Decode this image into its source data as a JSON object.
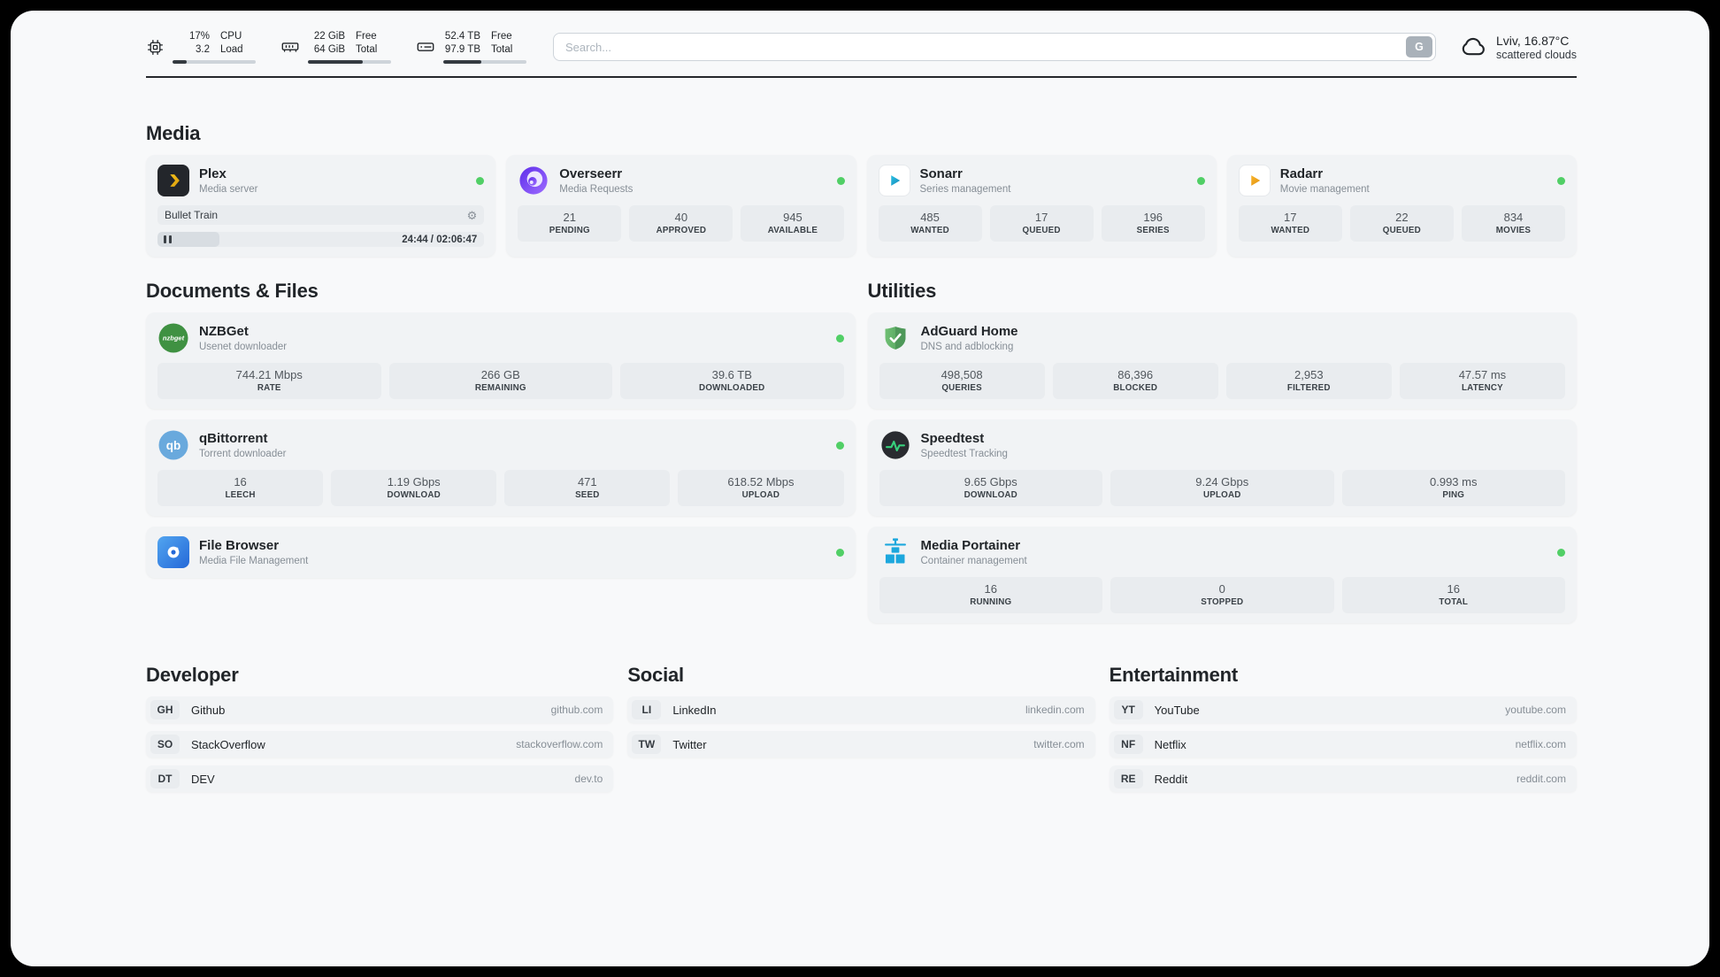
{
  "theme": {
    "status_online": "#51cf66",
    "page_bg": "#f8f9fa",
    "card_bg": "#f1f3f5",
    "stat_bg": "#e9ecef"
  },
  "icons": {
    "cpu": "chip",
    "ram": "memory-module",
    "disk": "hard-drive",
    "weather": "cloud",
    "search_engine": "G",
    "gear_glyph": "⚙",
    "nzbget_text": "nzbget",
    "qbittorrent_text": "qb",
    "status": "green-dot"
  },
  "header": {
    "cpu": {
      "usage": "17%",
      "load": "3.2",
      "label_top": "CPU",
      "label_bottom": "Load",
      "percent": 17
    },
    "ram": {
      "free": "22 GiB",
      "total": "64 GiB",
      "label_top": "Free",
      "label_bottom": "Total",
      "percent": 66
    },
    "disk": {
      "free": "52.4 TB",
      "total": "97.9 TB",
      "label_top": "Free",
      "label_bottom": "Total",
      "percent": 46
    },
    "search": {
      "placeholder": "Search...",
      "engine_label": "G"
    },
    "weather": {
      "location": "Lviv, 16.87°C",
      "condition": "scattered clouds"
    }
  },
  "sections": {
    "media": {
      "title": "Media",
      "apps": [
        {
          "name": "Plex",
          "subtitle": "Media server",
          "status": "online",
          "now_playing": {
            "title": "Bullet Train",
            "time": "24:44 / 02:06:47",
            "progress_percent": 19
          }
        },
        {
          "name": "Overseerr",
          "subtitle": "Media Requests",
          "status": "online",
          "stats": [
            {
              "value": "21",
              "label": "PENDING"
            },
            {
              "value": "40",
              "label": "APPROVED"
            },
            {
              "value": "945",
              "label": "AVAILABLE"
            }
          ]
        },
        {
          "name": "Sonarr",
          "subtitle": "Series management",
          "status": "online",
          "stats": [
            {
              "value": "485",
              "label": "WANTED"
            },
            {
              "value": "17",
              "label": "QUEUED"
            },
            {
              "value": "196",
              "label": "SERIES"
            }
          ]
        },
        {
          "name": "Radarr",
          "subtitle": "Movie management",
          "status": "online",
          "stats": [
            {
              "value": "17",
              "label": "WANTED"
            },
            {
              "value": "22",
              "label": "QUEUED"
            },
            {
              "value": "834",
              "label": "MOVIES"
            }
          ]
        }
      ]
    },
    "documents": {
      "title": "Documents & Files",
      "apps": [
        {
          "name": "NZBGet",
          "subtitle": "Usenet downloader",
          "status": "online",
          "stats": [
            {
              "value": "744.21 Mbps",
              "label": "RATE"
            },
            {
              "value": "266 GB",
              "label": "REMAINING"
            },
            {
              "value": "39.6 TB",
              "label": "DOWNLOADED"
            }
          ]
        },
        {
          "name": "qBittorrent",
          "subtitle": "Torrent downloader",
          "status": "online",
          "stats": [
            {
              "value": "16",
              "label": "LEECH"
            },
            {
              "value": "1.19 Gbps",
              "label": "DOWNLOAD"
            },
            {
              "value": "471",
              "label": "SEED"
            },
            {
              "value": "618.52 Mbps",
              "label": "UPLOAD"
            }
          ]
        },
        {
          "name": "File Browser",
          "subtitle": "Media File Management",
          "status": "online"
        }
      ]
    },
    "utilities": {
      "title": "Utilities",
      "apps": [
        {
          "name": "AdGuard Home",
          "subtitle": "DNS and adblocking",
          "stats": [
            {
              "value": "498,508",
              "label": "QUERIES"
            },
            {
              "value": "86,396",
              "label": "BLOCKED"
            },
            {
              "value": "2,953",
              "label": "FILTERED"
            },
            {
              "value": "47.57 ms",
              "label": "LATENCY"
            }
          ]
        },
        {
          "name": "Speedtest",
          "subtitle": "Speedtest Tracking",
          "stats": [
            {
              "value": "9.65 Gbps",
              "label": "DOWNLOAD"
            },
            {
              "value": "9.24 Gbps",
              "label": "UPLOAD"
            },
            {
              "value": "0.993 ms",
              "label": "PING"
            }
          ]
        },
        {
          "name": "Media Portainer",
          "subtitle": "Container management",
          "status": "online",
          "stats": [
            {
              "value": "16",
              "label": "RUNNING"
            },
            {
              "value": "0",
              "label": "STOPPED"
            },
            {
              "value": "16",
              "label": "TOTAL"
            }
          ]
        }
      ]
    }
  },
  "bookmarks": [
    {
      "title": "Developer",
      "items": [
        {
          "abbr": "GH",
          "name": "Github",
          "url": "github.com"
        },
        {
          "abbr": "SO",
          "name": "StackOverflow",
          "url": "stackoverflow.com"
        },
        {
          "abbr": "DT",
          "name": "DEV",
          "url": "dev.to"
        }
      ]
    },
    {
      "title": "Social",
      "items": [
        {
          "abbr": "LI",
          "name": "LinkedIn",
          "url": "linkedin.com"
        },
        {
          "abbr": "TW",
          "name": "Twitter",
          "url": "twitter.com"
        }
      ]
    },
    {
      "title": "Entertainment",
      "items": [
        {
          "abbr": "YT",
          "name": "YouTube",
          "url": "youtube.com"
        },
        {
          "abbr": "NF",
          "name": "Netflix",
          "url": "netflix.com"
        },
        {
          "abbr": "RE",
          "name": "Reddit",
          "url": "reddit.com"
        }
      ]
    }
  ]
}
